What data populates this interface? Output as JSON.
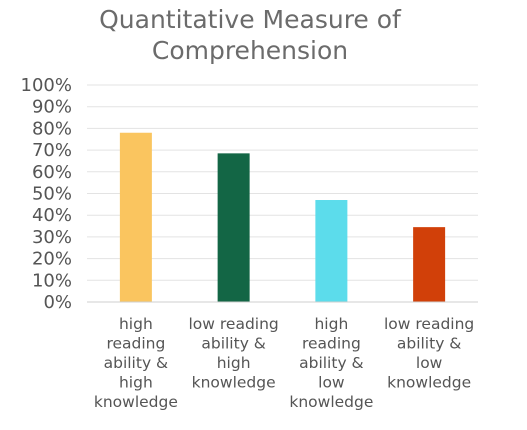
{
  "chart_data": {
    "type": "bar",
    "title_lines": [
      "Quantitative Measure of",
      "Comprehension"
    ],
    "categories": [
      [
        "high",
        "reading",
        "ability &",
        "high",
        "knowledge"
      ],
      [
        "low reading",
        "ability &",
        "high",
        "knowledge"
      ],
      [
        "high",
        "reading",
        "ability &",
        "low",
        "knowledge"
      ],
      [
        "low reading",
        "ability &",
        "low",
        "knowledge"
      ]
    ],
    "values": [
      0.78,
      0.685,
      0.47,
      0.345
    ],
    "colors": [
      "#fac55f",
      "#136645",
      "#5cdceb",
      "#d14009"
    ],
    "ylim": [
      0,
      1
    ],
    "yticks": [
      "0%",
      "10%",
      "20%",
      "30%",
      "40%",
      "50%",
      "60%",
      "70%",
      "80%",
      "90%",
      "100%"
    ],
    "grid": true,
    "legend": "none"
  }
}
